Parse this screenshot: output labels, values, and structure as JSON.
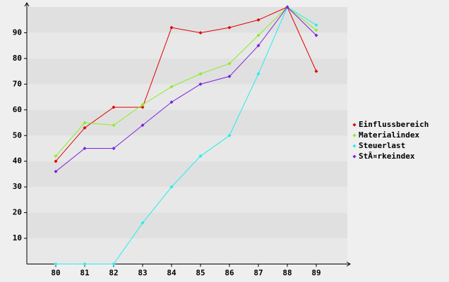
{
  "chart_data": {
    "type": "line",
    "categories": [
      "80",
      "81",
      "82",
      "83",
      "84",
      "85",
      "86",
      "87",
      "88",
      "89"
    ],
    "series": [
      {
        "name": "Einflussbereich",
        "color": "#e00000",
        "values": [
          40,
          53,
          61,
          61,
          92,
          90,
          92,
          95,
          100,
          75
        ]
      },
      {
        "name": "Materialindex",
        "color": "#88ee22",
        "values": [
          42,
          55,
          54,
          62,
          69,
          74,
          78,
          89,
          100,
          91
        ]
      },
      {
        "name": "Steuerlast",
        "color": "#22eeee",
        "values": [
          0,
          0,
          0,
          16,
          30,
          42,
          50,
          74,
          100,
          93
        ]
      },
      {
        "name": "StÃ¤rkeindex",
        "color": "#7a22dd",
        "values": [
          36,
          45,
          45,
          54,
          63,
          70,
          73,
          85,
          100,
          89
        ]
      }
    ],
    "ylim": [
      0,
      100
    ],
    "yticks": [
      10,
      20,
      30,
      40,
      50,
      60,
      70,
      80,
      90
    ],
    "legend": "right"
  }
}
